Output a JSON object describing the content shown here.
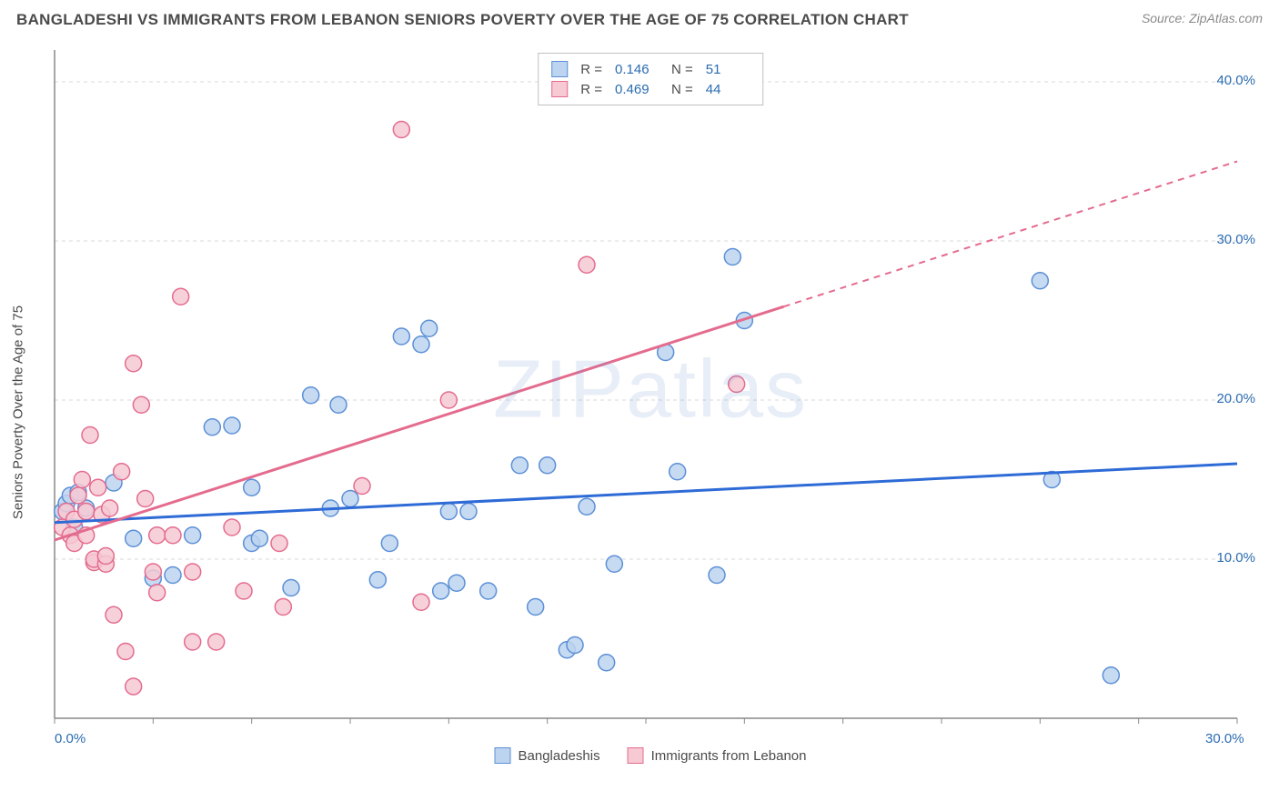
{
  "header": {
    "title": "BANGLADESHI VS IMMIGRANTS FROM LEBANON SENIORS POVERTY OVER THE AGE OF 75 CORRELATION CHART",
    "source": "Source: ZipAtlas.com"
  },
  "watermark": "ZIPatlas",
  "y_axis_label": "Seniors Poverty Over the Age of 75",
  "chart": {
    "type": "scatter",
    "xlim": [
      0,
      30
    ],
    "ylim": [
      0,
      42
    ],
    "x_ticks": [
      {
        "value": 0,
        "label": "0.0%"
      },
      {
        "value": 30,
        "label": "30.0%"
      }
    ],
    "y_ticks": [
      {
        "value": 10,
        "label": "10.0%"
      },
      {
        "value": 20,
        "label": "20.0%"
      },
      {
        "value": 30,
        "label": "30.0%"
      },
      {
        "value": 40,
        "label": "40.0%"
      }
    ],
    "grid_color": "#d8d8d8",
    "axis_line_color": "#888888",
    "background_color": "#ffffff",
    "tick_label_color": "#2b6cb0",
    "series": [
      {
        "name": "Bangladeshis",
        "point_fill": "#bcd4f0",
        "point_stroke": "#5b8fd6",
        "line_color": "#2e6bd6",
        "r_value": "0.146",
        "n_value": "51",
        "trend_line": {
          "x1": 0,
          "y1": 12.3,
          "x2": 30,
          "y2": 16.0,
          "dashed_from": null
        },
        "points": [
          [
            0.2,
            13.0
          ],
          [
            0.3,
            13.5
          ],
          [
            0.4,
            14.0
          ],
          [
            0.5,
            12.0
          ],
          [
            0.6,
            14.2
          ],
          [
            0.8,
            13.2
          ],
          [
            1.5,
            14.8
          ],
          [
            2.0,
            11.3
          ],
          [
            2.5,
            8.8
          ],
          [
            3.0,
            9.0
          ],
          [
            3.5,
            11.5
          ],
          [
            4.0,
            18.3
          ],
          [
            4.5,
            18.4
          ],
          [
            5.0,
            14.5
          ],
          [
            5.0,
            11.0
          ],
          [
            5.2,
            11.3
          ],
          [
            6.0,
            8.2
          ],
          [
            6.5,
            20.3
          ],
          [
            7.0,
            13.2
          ],
          [
            7.2,
            19.7
          ],
          [
            7.5,
            13.8
          ],
          [
            8.2,
            8.7
          ],
          [
            8.5,
            11.0
          ],
          [
            8.8,
            24.0
          ],
          [
            9.3,
            23.5
          ],
          [
            9.5,
            24.5
          ],
          [
            9.8,
            8.0
          ],
          [
            10.0,
            13.0
          ],
          [
            10.2,
            8.5
          ],
          [
            10.5,
            13.0
          ],
          [
            11.0,
            8.0
          ],
          [
            11.8,
            15.9
          ],
          [
            12.2,
            7.0
          ],
          [
            12.5,
            15.9
          ],
          [
            13.0,
            4.3
          ],
          [
            13.2,
            4.6
          ],
          [
            13.5,
            13.3
          ],
          [
            14.0,
            3.5
          ],
          [
            14.2,
            9.7
          ],
          [
            15.5,
            23.0
          ],
          [
            15.8,
            15.5
          ],
          [
            16.8,
            9.0
          ],
          [
            17.2,
            29.0
          ],
          [
            17.5,
            25.0
          ],
          [
            25.0,
            27.5
          ],
          [
            25.3,
            15.0
          ],
          [
            26.8,
            2.7
          ]
        ]
      },
      {
        "name": "Immigrants from Lebanon",
        "point_fill": "#f6c9d3",
        "point_stroke": "#e46b8e",
        "line_color": "#e46b8e",
        "r_value": "0.469",
        "n_value": "44",
        "trend_line": {
          "x1": 0,
          "y1": 11.2,
          "x2": 30,
          "y2": 35.0,
          "dashed_from": 18.5
        },
        "points": [
          [
            0.2,
            12.0
          ],
          [
            0.3,
            13.0
          ],
          [
            0.4,
            11.5
          ],
          [
            0.5,
            12.5
          ],
          [
            0.5,
            11.0
          ],
          [
            0.6,
            14.0
          ],
          [
            0.7,
            15.0
          ],
          [
            0.8,
            11.5
          ],
          [
            0.8,
            13.0
          ],
          [
            0.9,
            17.8
          ],
          [
            1.0,
            9.8
          ],
          [
            1.0,
            10.0
          ],
          [
            1.1,
            14.5
          ],
          [
            1.2,
            12.8
          ],
          [
            1.3,
            9.7
          ],
          [
            1.3,
            10.2
          ],
          [
            1.4,
            13.2
          ],
          [
            1.5,
            6.5
          ],
          [
            1.7,
            15.5
          ],
          [
            1.8,
            4.2
          ],
          [
            2.0,
            22.3
          ],
          [
            2.0,
            2.0
          ],
          [
            2.2,
            19.7
          ],
          [
            2.3,
            13.8
          ],
          [
            2.5,
            9.2
          ],
          [
            2.6,
            7.9
          ],
          [
            2.6,
            11.5
          ],
          [
            3.0,
            11.5
          ],
          [
            3.2,
            26.5
          ],
          [
            3.5,
            4.8
          ],
          [
            3.5,
            9.2
          ],
          [
            4.1,
            4.8
          ],
          [
            4.5,
            12.0
          ],
          [
            4.8,
            8.0
          ],
          [
            5.7,
            11.0
          ],
          [
            5.8,
            7.0
          ],
          [
            7.8,
            14.6
          ],
          [
            8.8,
            37.0
          ],
          [
            9.3,
            7.3
          ],
          [
            10.0,
            20.0
          ],
          [
            13.5,
            28.5
          ],
          [
            17.3,
            21.0
          ]
        ]
      }
    ]
  },
  "top_legend_labels": {
    "r": "R  =",
    "n": "N  ="
  },
  "bottom_legend": [
    "Bangladeshis",
    "Immigrants from Lebanon"
  ]
}
